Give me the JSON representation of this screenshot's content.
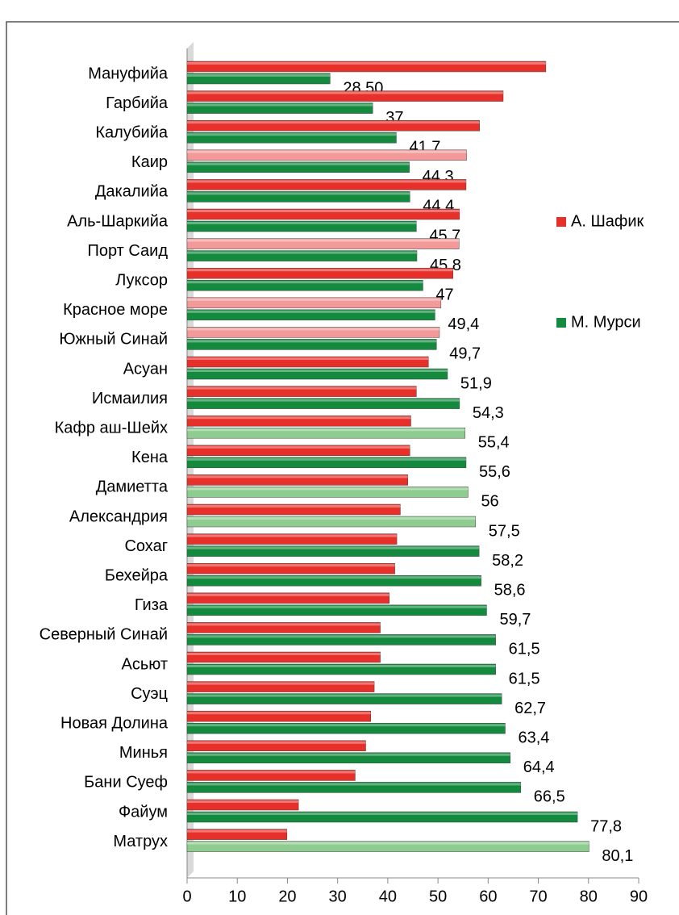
{
  "chart_data": {
    "type": "bar",
    "orientation": "horizontal",
    "categories": [
      "Мануфийа",
      "Гарбийа",
      "Калубийа",
      "Каир",
      "Дакалийа",
      "Аль-Шаркийа",
      "Порт Саид",
      "Луксор",
      "Красное море",
      "Южный Синай",
      "Асуан",
      "Исмаилия",
      "Кафр аш-Шейх",
      "Кена",
      "Дамиетта",
      "Александрия",
      "Сохаг",
      "Бехейра",
      "Гиза",
      "Северный Синай",
      "Асьют",
      "Суэц",
      "Новая Долина",
      "Минья",
      "Бани Суеф",
      "Файум",
      "Матрух"
    ],
    "series": [
      {
        "name": "А. Шафик",
        "color": "#e8302a",
        "colors": [
          "#e8302a",
          "#e8302a",
          "#e8302a",
          "#f29a9a",
          "#e8302a",
          "#e8302a",
          "#f29a9a",
          "#e8302a",
          "#f29a9a",
          "#f29a9a",
          "#e8302a",
          "#e8302a",
          "#e8302a",
          "#e8302a",
          "#e8302a",
          "#e8302a",
          "#e8302a",
          "#e8302a",
          "#e8302a",
          "#e8302a",
          "#e8302a",
          "#e8302a",
          "#e8302a",
          "#e8302a",
          "#e8302a",
          "#e8302a",
          "#e8302a"
        ],
        "values": [
          71.5,
          63,
          58.3,
          55.7,
          55.6,
          54.3,
          54.2,
          53,
          50.6,
          50.3,
          48.1,
          45.7,
          44.6,
          44.4,
          44,
          42.5,
          41.8,
          41.4,
          40.3,
          38.5,
          38.5,
          37.3,
          36.6,
          35.6,
          33.5,
          22.2,
          19.9
        ]
      },
      {
        "name": "М. Мурси",
        "color": "#138a3e",
        "colors": [
          "#138a3e",
          "#138a3e",
          "#138a3e",
          "#138a3e",
          "#138a3e",
          "#138a3e",
          "#138a3e",
          "#138a3e",
          "#138a3e",
          "#138a3e",
          "#138a3e",
          "#138a3e",
          "#8fcc8f",
          "#138a3e",
          "#8fcc8f",
          "#8fcc8f",
          "#138a3e",
          "#138a3e",
          "#138a3e",
          "#138a3e",
          "#138a3e",
          "#138a3e",
          "#138a3e",
          "#138a3e",
          "#138a3e",
          "#138a3e",
          "#8fcc8f"
        ],
        "values": [
          28.5,
          37,
          41.7,
          44.3,
          44.4,
          45.7,
          45.8,
          47,
          49.4,
          49.7,
          51.9,
          54.3,
          55.4,
          55.6,
          56,
          57.5,
          58.2,
          58.6,
          59.7,
          61.5,
          61.5,
          62.7,
          63.4,
          64.4,
          66.5,
          77.8,
          80.1
        ],
        "value_labels": [
          "28,50",
          "37",
          "41,7",
          "44,3",
          "44,4",
          "45,7",
          "45,8",
          "47",
          "49,4",
          "49,7",
          "51,9",
          "54,3",
          "55,4",
          "55,6",
          "56",
          "57,5",
          "58,2",
          "58,6",
          "59,7",
          "61,5",
          "61,5",
          "62,7",
          "63,4",
          "64,4",
          "66,5",
          "77,8",
          "80,1"
        ]
      }
    ],
    "xlim": [
      0,
      90
    ],
    "xticks": [
      0,
      10,
      20,
      30,
      40,
      50,
      60,
      70,
      80,
      90
    ],
    "legend": "right"
  }
}
